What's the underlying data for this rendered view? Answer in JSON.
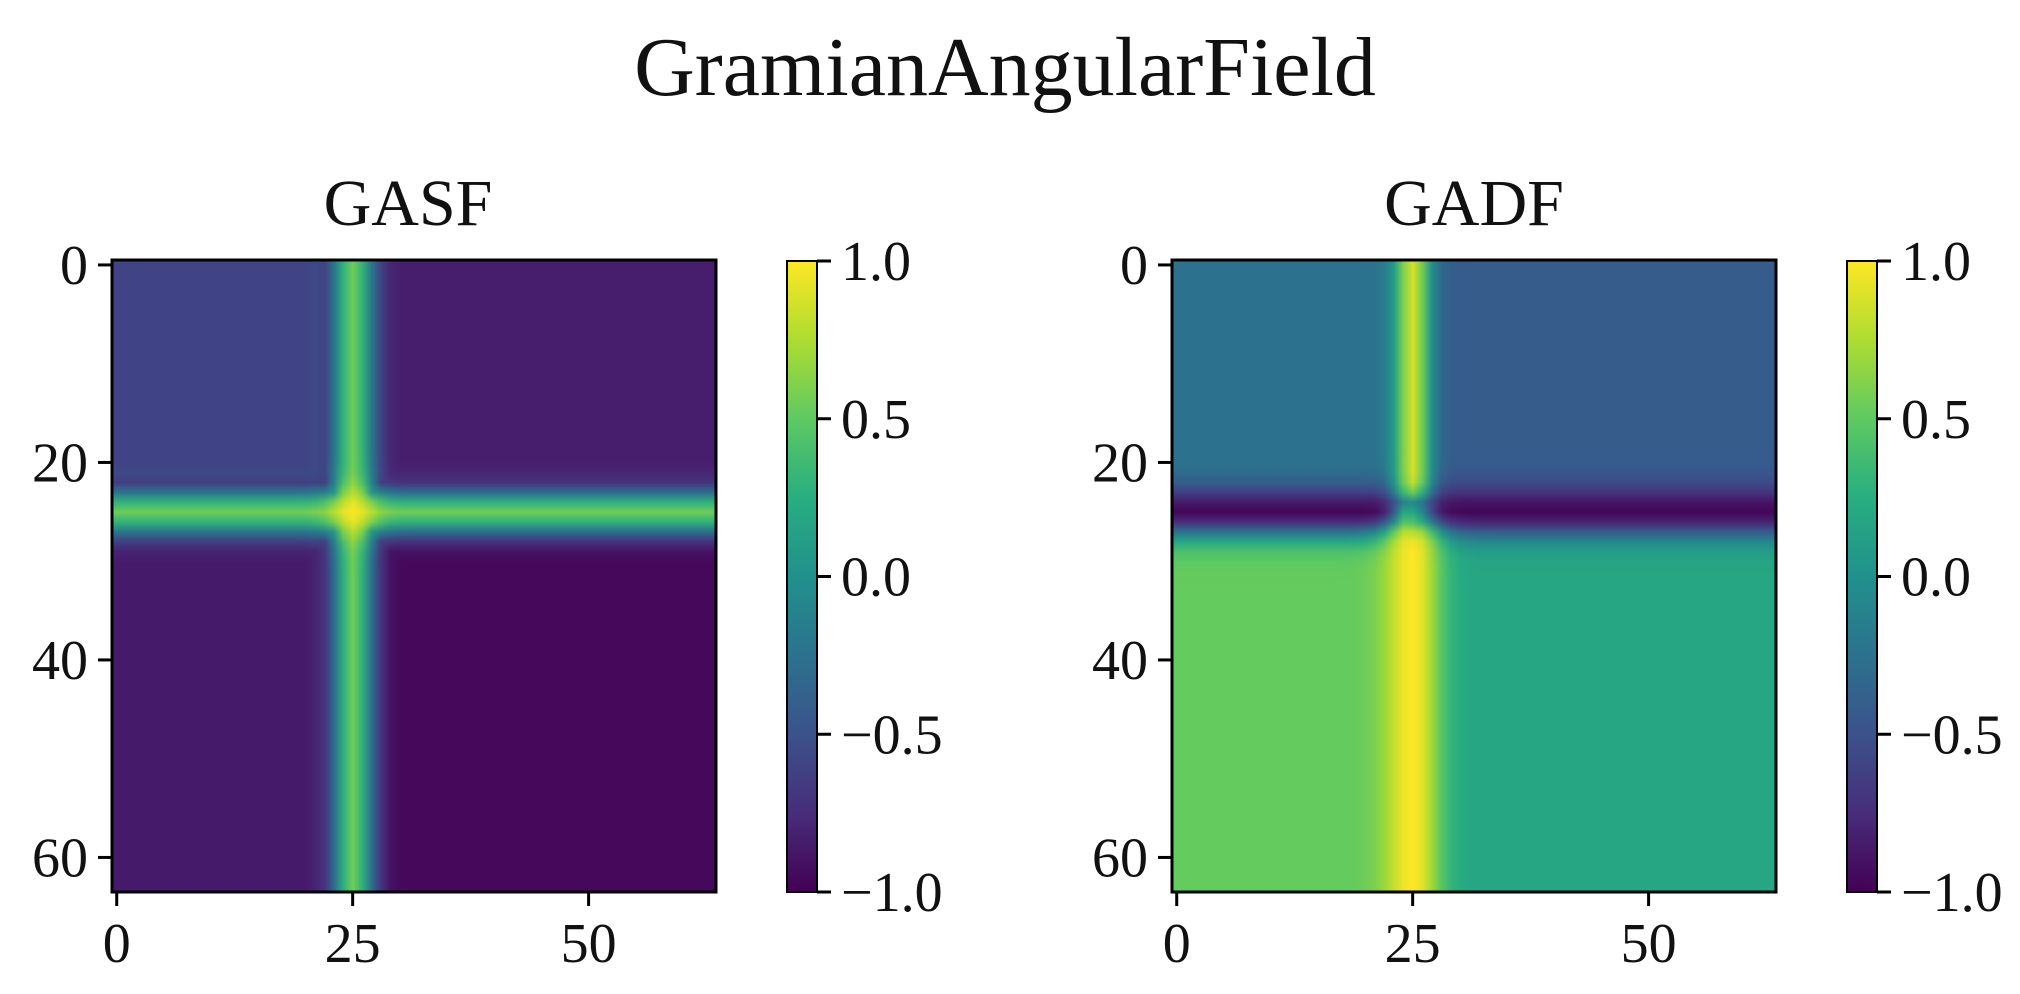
{
  "figure": {
    "title": "GramianAngularField"
  },
  "chart_data": [
    {
      "type": "heatmap",
      "title": "GASF",
      "x_range": [
        0,
        63
      ],
      "y_range": [
        0,
        63
      ],
      "y_inverted": true,
      "xticks": [
        0,
        25,
        50
      ],
      "yticks": [
        0,
        20,
        40,
        60
      ],
      "value_range": [
        -1.0,
        1.0
      ],
      "colormap": "viridis",
      "colorbar_ticks": [
        "1.0",
        "0.5",
        "0.0",
        "−0.5",
        "−1.0"
      ],
      "colorbar_tick_values": [
        1.0,
        0.5,
        0.0,
        -0.5,
        -1.0
      ],
      "field_notes": "symmetric matrix; bright cross centred at index 25, peak 1.0 at (25,25); lower-right region near -1.0; upper-left region around -0.6"
    },
    {
      "type": "heatmap",
      "title": "GADF",
      "x_range": [
        0,
        63
      ],
      "y_range": [
        0,
        63
      ],
      "y_inverted": true,
      "xticks": [
        0,
        25,
        50
      ],
      "yticks": [
        0,
        20,
        40,
        60
      ],
      "value_range": [
        -1.0,
        1.0
      ],
      "colormap": "viridis",
      "colorbar_ticks": [
        "1.0",
        "0.5",
        "0.0",
        "−0.5",
        "−1.0"
      ],
      "colorbar_tick_values": [
        1.0,
        0.5,
        0.0,
        -0.5,
        -1.0
      ],
      "field_notes": "antisymmetric-like; vertical band at column ~25 near 1.0 (upper part ~0.85); horizontal dark band at row ~25 near -1.0 right of diagonal; lower-left ~0.5, lower-right ~0.15, upper-right ~-0.4"
    }
  ]
}
